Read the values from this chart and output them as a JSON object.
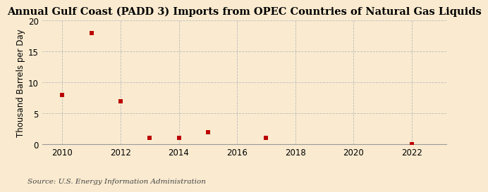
{
  "title": "Annual Gulf Coast (PADD 3) Imports from OPEC Countries of Natural Gas Liquids",
  "ylabel": "Thousand Barrels per Day",
  "source": "Source: U.S. Energy Information Administration",
  "background_color": "#faebd0",
  "x_data": [
    2010,
    2011,
    2012,
    2013,
    2014,
    2015,
    2017,
    2022
  ],
  "y_data": [
    8.0,
    18.0,
    7.0,
    1.0,
    1.0,
    2.0,
    1.0,
    0.05
  ],
  "marker_color": "#bb0000",
  "marker": "s",
  "marker_size": 4,
  "xlim": [
    2009.3,
    2023.2
  ],
  "ylim": [
    0,
    20
  ],
  "yticks": [
    0,
    5,
    10,
    15,
    20
  ],
  "xticks": [
    2010,
    2012,
    2014,
    2016,
    2018,
    2020,
    2022
  ],
  "grid_color": "#bbbbbb",
  "grid_linestyle": "--",
  "title_fontsize": 10.5,
  "ylabel_fontsize": 8.5,
  "tick_fontsize": 8.5,
  "source_fontsize": 7.5
}
